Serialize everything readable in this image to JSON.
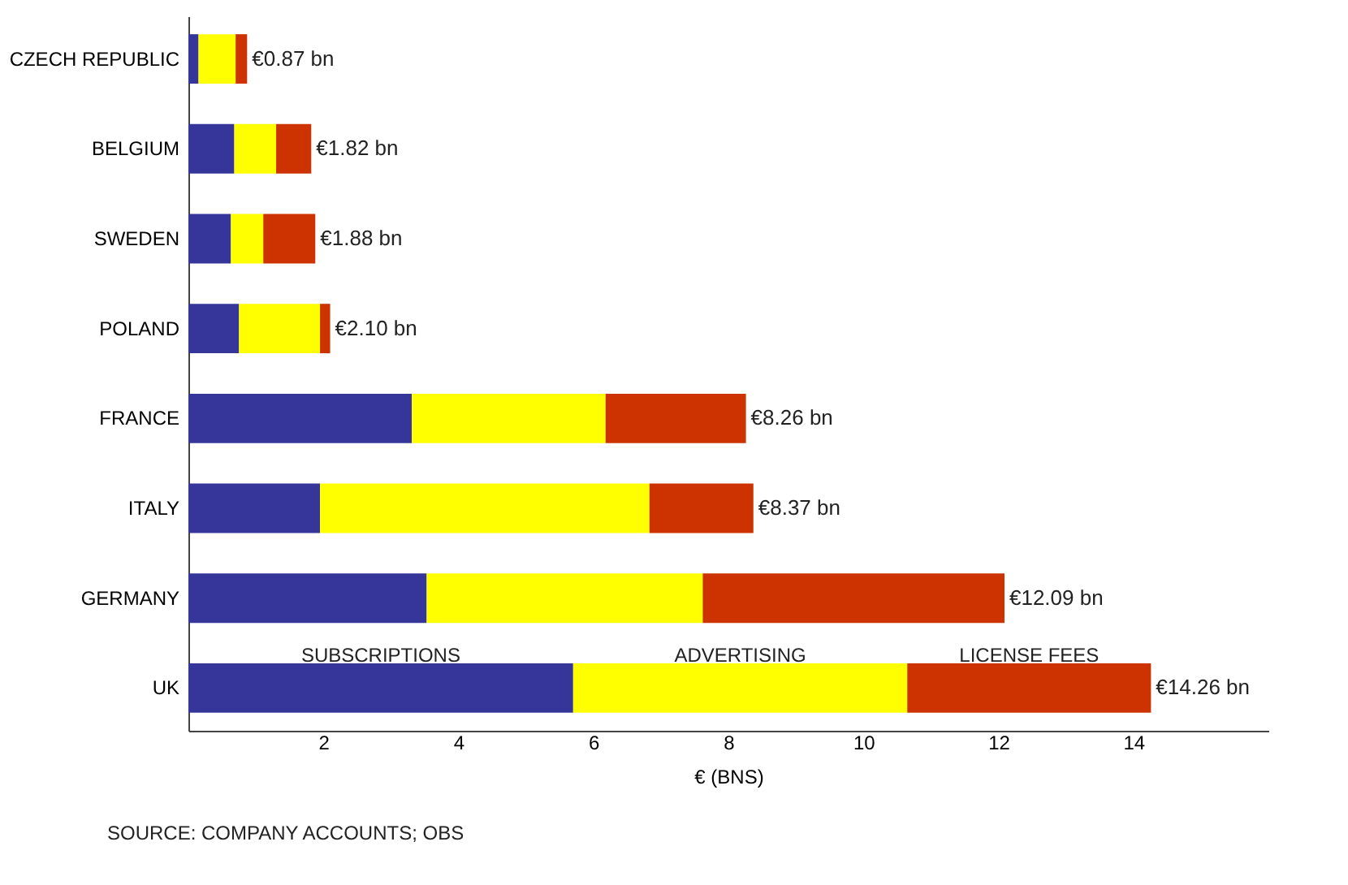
{
  "chart_data": {
    "type": "bar",
    "orientation": "horizontal",
    "stacked": true,
    "categories": [
      "CZECH REPUBLIC",
      "BELGIUM",
      "SWEDEN",
      "POLAND",
      "FRANCE",
      "ITALY",
      "GERMANY",
      "UK"
    ],
    "series": [
      {
        "name": "SUBSCRIPTIONS",
        "color": "#36369a",
        "values": [
          0.15,
          0.68,
          0.63,
          0.75,
          3.31,
          1.95,
          3.53,
          5.7
        ]
      },
      {
        "name": "ADVERTISING",
        "color": "#ffff00",
        "values": [
          0.55,
          0.62,
          0.48,
          1.2,
          2.87,
          4.88,
          4.09,
          4.95
        ]
      },
      {
        "name": "LICENSE FEES",
        "color": "#cc3300",
        "values": [
          0.17,
          0.52,
          0.77,
          0.15,
          2.08,
          1.54,
          4.47,
          3.61
        ]
      }
    ],
    "totals": [
      "€0.87 bn",
      "€1.82 bn",
      "€1.88 bn",
      "€2.10 bn",
      "€8.26 bn",
      "€8.37 bn",
      "€12.09 bn",
      "€14.26 bn"
    ],
    "xlim": [
      0,
      16
    ],
    "xticks": [
      2,
      4,
      6,
      8,
      10,
      12,
      14
    ],
    "xlabel": "€ (BNS)",
    "grid": false,
    "legend": false,
    "annotations": [
      "SOURCE: COMPANY ACCOUNTS; OBS"
    ]
  }
}
